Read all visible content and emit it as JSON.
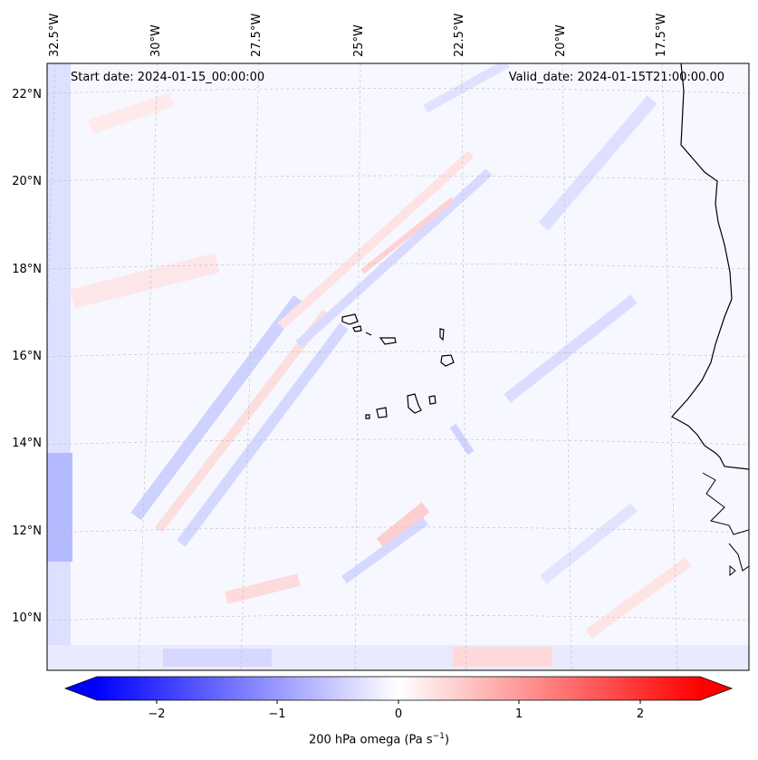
{
  "map": {
    "start_date": "Start date: 2024-01-15_00:00:00",
    "valid_date": "Valid_date: 2024-01-15T21:00:00.00",
    "lon_labels": [
      "32.5°W",
      "30°W",
      "27.5°W",
      "25°W",
      "22.5°W",
      "20°W",
      "17.5°W"
    ],
    "lat_labels": [
      "22°N",
      "20°N",
      "18°N",
      "16°N",
      "14°N",
      "12°N",
      "10°N"
    ],
    "gridlines": "on"
  },
  "colorbar": {
    "label": "200 hPa omega (Pa s",
    "label_sup": "−1",
    "label_end": ")",
    "ticks": [
      "−2",
      "−1",
      "0",
      "1",
      "2"
    ],
    "range": [
      -2.75,
      2.75
    ],
    "cmap": "bwr",
    "colors": {
      "min": "#0000ff",
      "mid": "#ffffff",
      "max": "#ff0000"
    }
  }
}
